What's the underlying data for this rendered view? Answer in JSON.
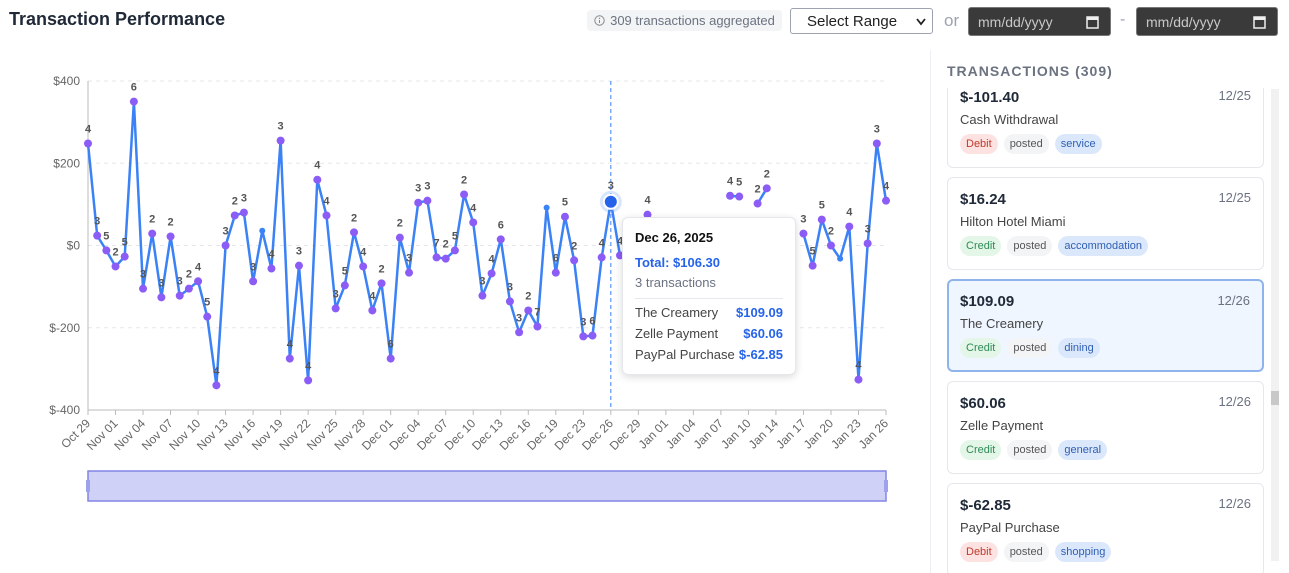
{
  "header": {
    "title": "Transaction Performance",
    "badge": "309 transactions aggregated",
    "select": "Select Range",
    "or": "or",
    "date_from": "mm/dd/yyyy",
    "dash": "-",
    "date_to": "mm/dd/yyyy"
  },
  "chart_data": {
    "type": "line",
    "categories": [
      "Oct 29",
      null,
      null,
      "Nov 01",
      null,
      null,
      "Nov 04",
      null,
      null,
      "Nov 07",
      null,
      null,
      "Nov 10",
      null,
      null,
      "Nov 13",
      null,
      null,
      "Nov 16",
      null,
      null,
      "Nov 19",
      null,
      null,
      "Nov 22",
      null,
      null,
      "Nov 25",
      null,
      null,
      "Nov 28",
      null,
      null,
      "Dec 01",
      null,
      null,
      "Dec 04",
      null,
      null,
      "Dec 07",
      null,
      null,
      "Dec 10",
      null,
      null,
      "Dec 13",
      null,
      null,
      "Dec 16",
      null,
      null,
      "Dec 19",
      null,
      null,
      "Dec 23",
      null,
      null,
      "Dec 26",
      null,
      null,
      "Dec 29",
      null,
      null,
      "Jan 01",
      null,
      null,
      "Jan 04",
      null,
      null,
      "Jan 07",
      null,
      null,
      "Jan 10",
      null,
      null,
      "Jan 14",
      null,
      null,
      "Jan 17",
      null,
      null,
      "Jan 20",
      null,
      null,
      "Jan 23",
      null,
      null,
      "Jan 26"
    ],
    "values": [
      248,
      24,
      -12,
      -51,
      -27,
      350,
      -105,
      29,
      -126,
      22,
      -122,
      -105,
      -87,
      -173,
      -340,
      0,
      73,
      80,
      -87,
      36,
      -56,
      255,
      -275,
      -49,
      -328,
      160,
      73,
      -153,
      -97,
      32,
      -51,
      -158,
      -92,
      -275,
      19,
      -66,
      104,
      109,
      -29,
      -32,
      -12,
      124,
      56,
      -122,
      -68,
      15,
      -136,
      -211,
      -158,
      -197,
      92,
      -66,
      70,
      -36,
      -221,
      -219,
      -29,
      106.3,
      -24,
      null,
      null,
      75,
      null,
      null,
      null,
      null,
      null,
      null,
      null,
      null,
      121,
      119,
      null,
      102,
      139,
      null,
      null,
      null,
      29,
      -49,
      63,
      0,
      -32,
      46,
      -326,
      5,
      248,
      109
    ],
    "counts": [
      4,
      3,
      5,
      2,
      5,
      6,
      3,
      2,
      3,
      2,
      3,
      2,
      4,
      5,
      4,
      3,
      2,
      3,
      3,
      null,
      4,
      3,
      4,
      3,
      4,
      4,
      4,
      3,
      5,
      2,
      4,
      4,
      2,
      6,
      2,
      3,
      3,
      3,
      7,
      2,
      5,
      2,
      4,
      3,
      4,
      6,
      3,
      3,
      2,
      7,
      null,
      6,
      5,
      2,
      3,
      6,
      4,
      3,
      4,
      null,
      null,
      4,
      null,
      null,
      null,
      null,
      null,
      null,
      null,
      null,
      4,
      5,
      null,
      2,
      2,
      null,
      null,
      null,
      3,
      5,
      5,
      2,
      null,
      4,
      4,
      3,
      3,
      4
    ],
    "color": "#3b82f6",
    "point_color": "#8b5cf6",
    "ylim": [
      -400,
      400
    ],
    "yticks": [
      {
        "value": -400,
        "label": "$-400"
      },
      {
        "value": -200,
        "label": "$-200"
      },
      {
        "value": 0,
        "label": "$0"
      },
      {
        "value": 200,
        "label": "$200"
      },
      {
        "value": 400,
        "label": "$400"
      }
    ],
    "grid": true,
    "tooltip": {
      "date": "Dec 26, 2025",
      "total": "Total: $106.30",
      "count": "3 transactions",
      "items": [
        {
          "name": "The Creamery",
          "amount": "$109.09"
        },
        {
          "name": "Zelle Payment",
          "amount": "$60.06"
        },
        {
          "name": "PayPal Purchase",
          "amount": "$-62.85"
        }
      ]
    }
  },
  "panel": {
    "title": "TRANSACTIONS (309)",
    "cards": [
      {
        "amount": "$-101.40",
        "date": "12/25",
        "name": "Cash Withdrawal",
        "type": "Debit",
        "status": "posted",
        "category": "service"
      },
      {
        "amount": "$16.24",
        "date": "12/25",
        "name": "Hilton Hotel Miami",
        "type": "Credit",
        "status": "posted",
        "category": "accommodation"
      },
      {
        "amount": "$109.09",
        "date": "12/26",
        "name": "The Creamery",
        "type": "Credit",
        "status": "posted",
        "category": "dining"
      },
      {
        "amount": "$60.06",
        "date": "12/26",
        "name": "Zelle Payment",
        "type": "Credit",
        "status": "posted",
        "category": "general"
      },
      {
        "amount": "$-62.85",
        "date": "12/26",
        "name": "PayPal Purchase",
        "type": "Debit",
        "status": "posted",
        "category": "shopping"
      }
    ]
  }
}
